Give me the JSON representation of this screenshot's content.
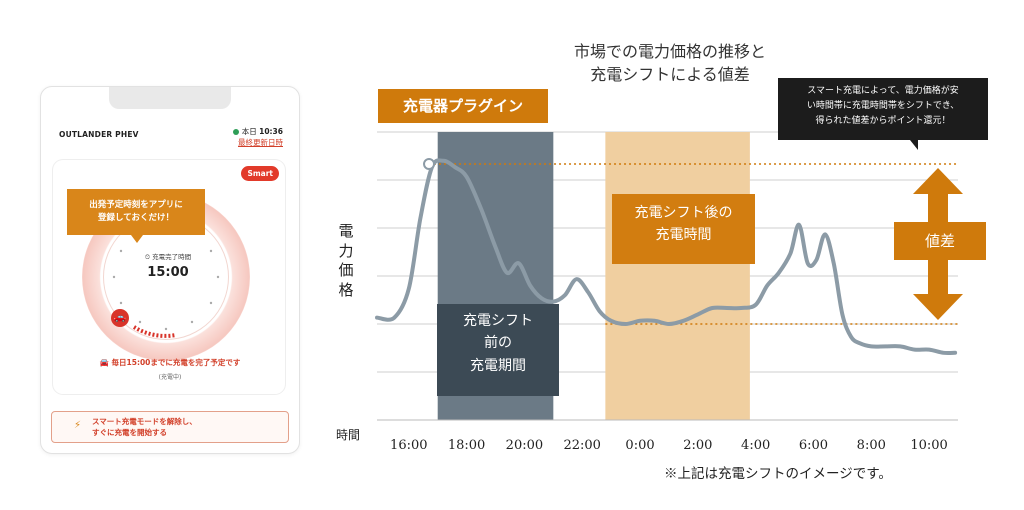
{
  "phone": {
    "model": "OUTLANDER PHEV",
    "status_day": "本日",
    "status_time": "10:36",
    "status_update": "最終更新日時",
    "smart_badge": "Smart",
    "tooltip_line1": "出発予定時刻をアプリに",
    "tooltip_line2": "登録しておくだけ！",
    "clock_label": "充電完了時間",
    "clock_time": "15:00",
    "schedule_text": "毎日15:00までに充電を完了予定です",
    "schedule_sub": "(充電中)",
    "release_line1": "スマート充電モードを解除し、",
    "release_line2": "すぐに充電を開始する"
  },
  "chart_data": {
    "type": "line",
    "title": "市場での電力価格の推移と充電シフトによる値差",
    "title_line1": "市場での電力価格の推移と",
    "title_line2": "充電シフトによる値差",
    "ylabel": "電力価格",
    "xlabel": "時間",
    "x_ticks": [
      "16:00",
      "18:00",
      "20:00",
      "22:00",
      "0:00",
      "2:00",
      "4:00",
      "6:00",
      "8:00",
      "10:00"
    ],
    "x_hours": [
      14.9,
      15.5,
      16.0,
      16.4,
      16.8,
      17.2,
      17.6,
      18.0,
      18.5,
      19.0,
      19.4,
      19.8,
      20.2,
      20.6,
      21.0,
      21.4,
      21.8,
      22.2,
      22.6,
      23.0,
      23.5,
      24.0,
      24.5,
      25.0,
      25.5,
      26.0,
      26.5,
      27.0,
      27.5,
      28.0,
      28.4,
      28.8,
      29.2,
      29.5,
      29.8,
      30.1,
      30.4,
      30.7,
      31.0,
      31.3,
      31.6,
      32.0,
      32.5,
      33.0,
      33.5,
      34.0,
      34.5,
      34.9
    ],
    "y_price": [
      3.2,
      3.2,
      4.1,
      6.3,
      7.9,
      8.1,
      7.9,
      7.6,
      6.6,
      5.4,
      4.6,
      4.9,
      4.2,
      3.8,
      3.7,
      3.9,
      4.4,
      4.0,
      3.4,
      3.1,
      3.0,
      3.1,
      3.1,
      3.0,
      3.1,
      3.3,
      3.5,
      3.5,
      3.5,
      3.6,
      4.2,
      4.6,
      5.2,
      6.1,
      4.9,
      5.0,
      5.8,
      4.9,
      3.3,
      2.6,
      2.4,
      2.3,
      2.3,
      2.3,
      2.2,
      2.2,
      2.1,
      2.1
    ],
    "ylim": [
      0,
      9
    ],
    "xlim": [
      14.9,
      35.0
    ],
    "annotations": {
      "plug_in": "充電器プラグイン",
      "before_line1": "充電シフト",
      "before_line2": "前の",
      "before_line3": "充電期間",
      "after_line1": "充電シフト後の",
      "after_line2": "充電時間",
      "diff": "値差",
      "callout_line1": "スマート充電によって、電力価格が安",
      "callout_line2": "い時間帯に充電時間帯をシフトでき、",
      "callout_line3": "得られた値差からポイント還元！"
    },
    "before_period_hours": [
      17.0,
      21.0
    ],
    "after_period_hours": [
      22.8,
      27.8
    ],
    "plug_in_hour": 16.7,
    "diff_high_price": 8.0,
    "diff_low_price": 3.0,
    "note": "※上記は充電シフトのイメージです。"
  },
  "colors": {
    "line": "#8c9ba6",
    "before_band": "#6b7a86",
    "before_label": "#3c4a55",
    "after_band": "#f0cfa0",
    "accent_orange": "#cf7a0c",
    "callout": "#1c1c1c",
    "phone_red": "#d2402a"
  },
  "icons": [
    "plug-icon",
    "car-icon",
    "lightning-icon",
    "clock-icon"
  ]
}
